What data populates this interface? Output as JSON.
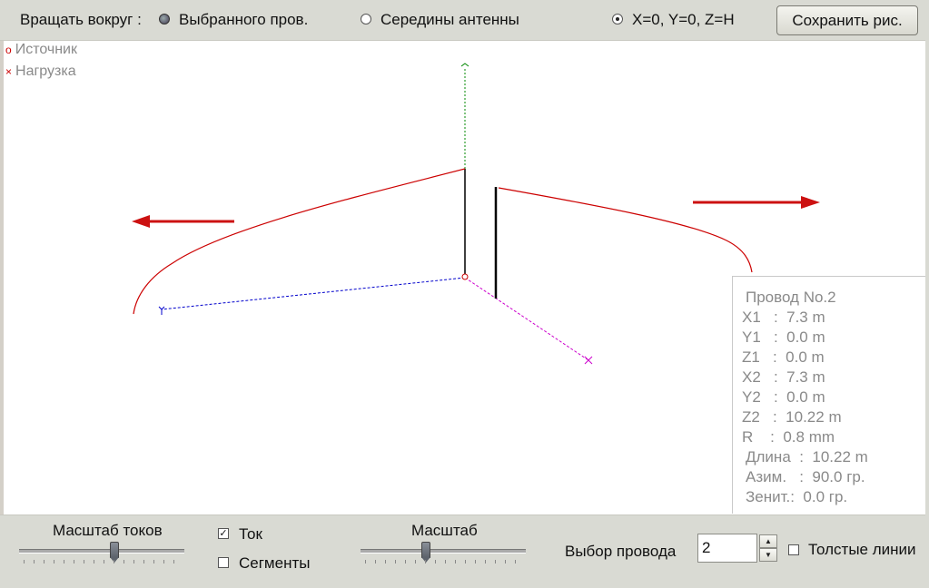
{
  "toolbar": {
    "rotate_label": "Вращать вокруг :",
    "options": [
      {
        "label": "Выбранного пров.",
        "selected": false
      },
      {
        "label": "Середины антенны",
        "selected": false
      },
      {
        "label": "X=0, Y=0, Z=H",
        "selected": true
      }
    ],
    "save_label": "Сохранить рис."
  },
  "legend": [
    {
      "marker": "o",
      "label": "Источник"
    },
    {
      "marker": "×",
      "label": "Нагрузка"
    }
  ],
  "wire_info": {
    "title": "Провод No.2",
    "rows": [
      "X1   :  7.3 m",
      "Y1   :  0.0 m",
      "Z1   :  0.0 m",
      "X2   :  7.3 m",
      "Y2   :  0.0 m",
      "Z2   :  10.22 m",
      "R    :  0.8 mm",
      "Длина  :  10.22 m",
      "Азим.   :  90.0 гр.",
      "Зенит.:  0.0 гр."
    ]
  },
  "bottom": {
    "current_scale_label": "Масштаб токов",
    "current_label": "Ток",
    "current_checked": true,
    "segments_label": "Сегменты",
    "segments_checked": false,
    "scale_label": "Масштаб",
    "wire_select_label": "Выбор провода",
    "wire_select_value": "2",
    "thick_lines_label": "Толстые линии",
    "thick_lines_checked": false
  },
  "colors": {
    "current": "#cc0000",
    "wire": "#000000",
    "x_axis": "#0000cc",
    "y_axis": "#cc00cc",
    "z_axis": "#008800",
    "arrow": "#cc1111"
  }
}
